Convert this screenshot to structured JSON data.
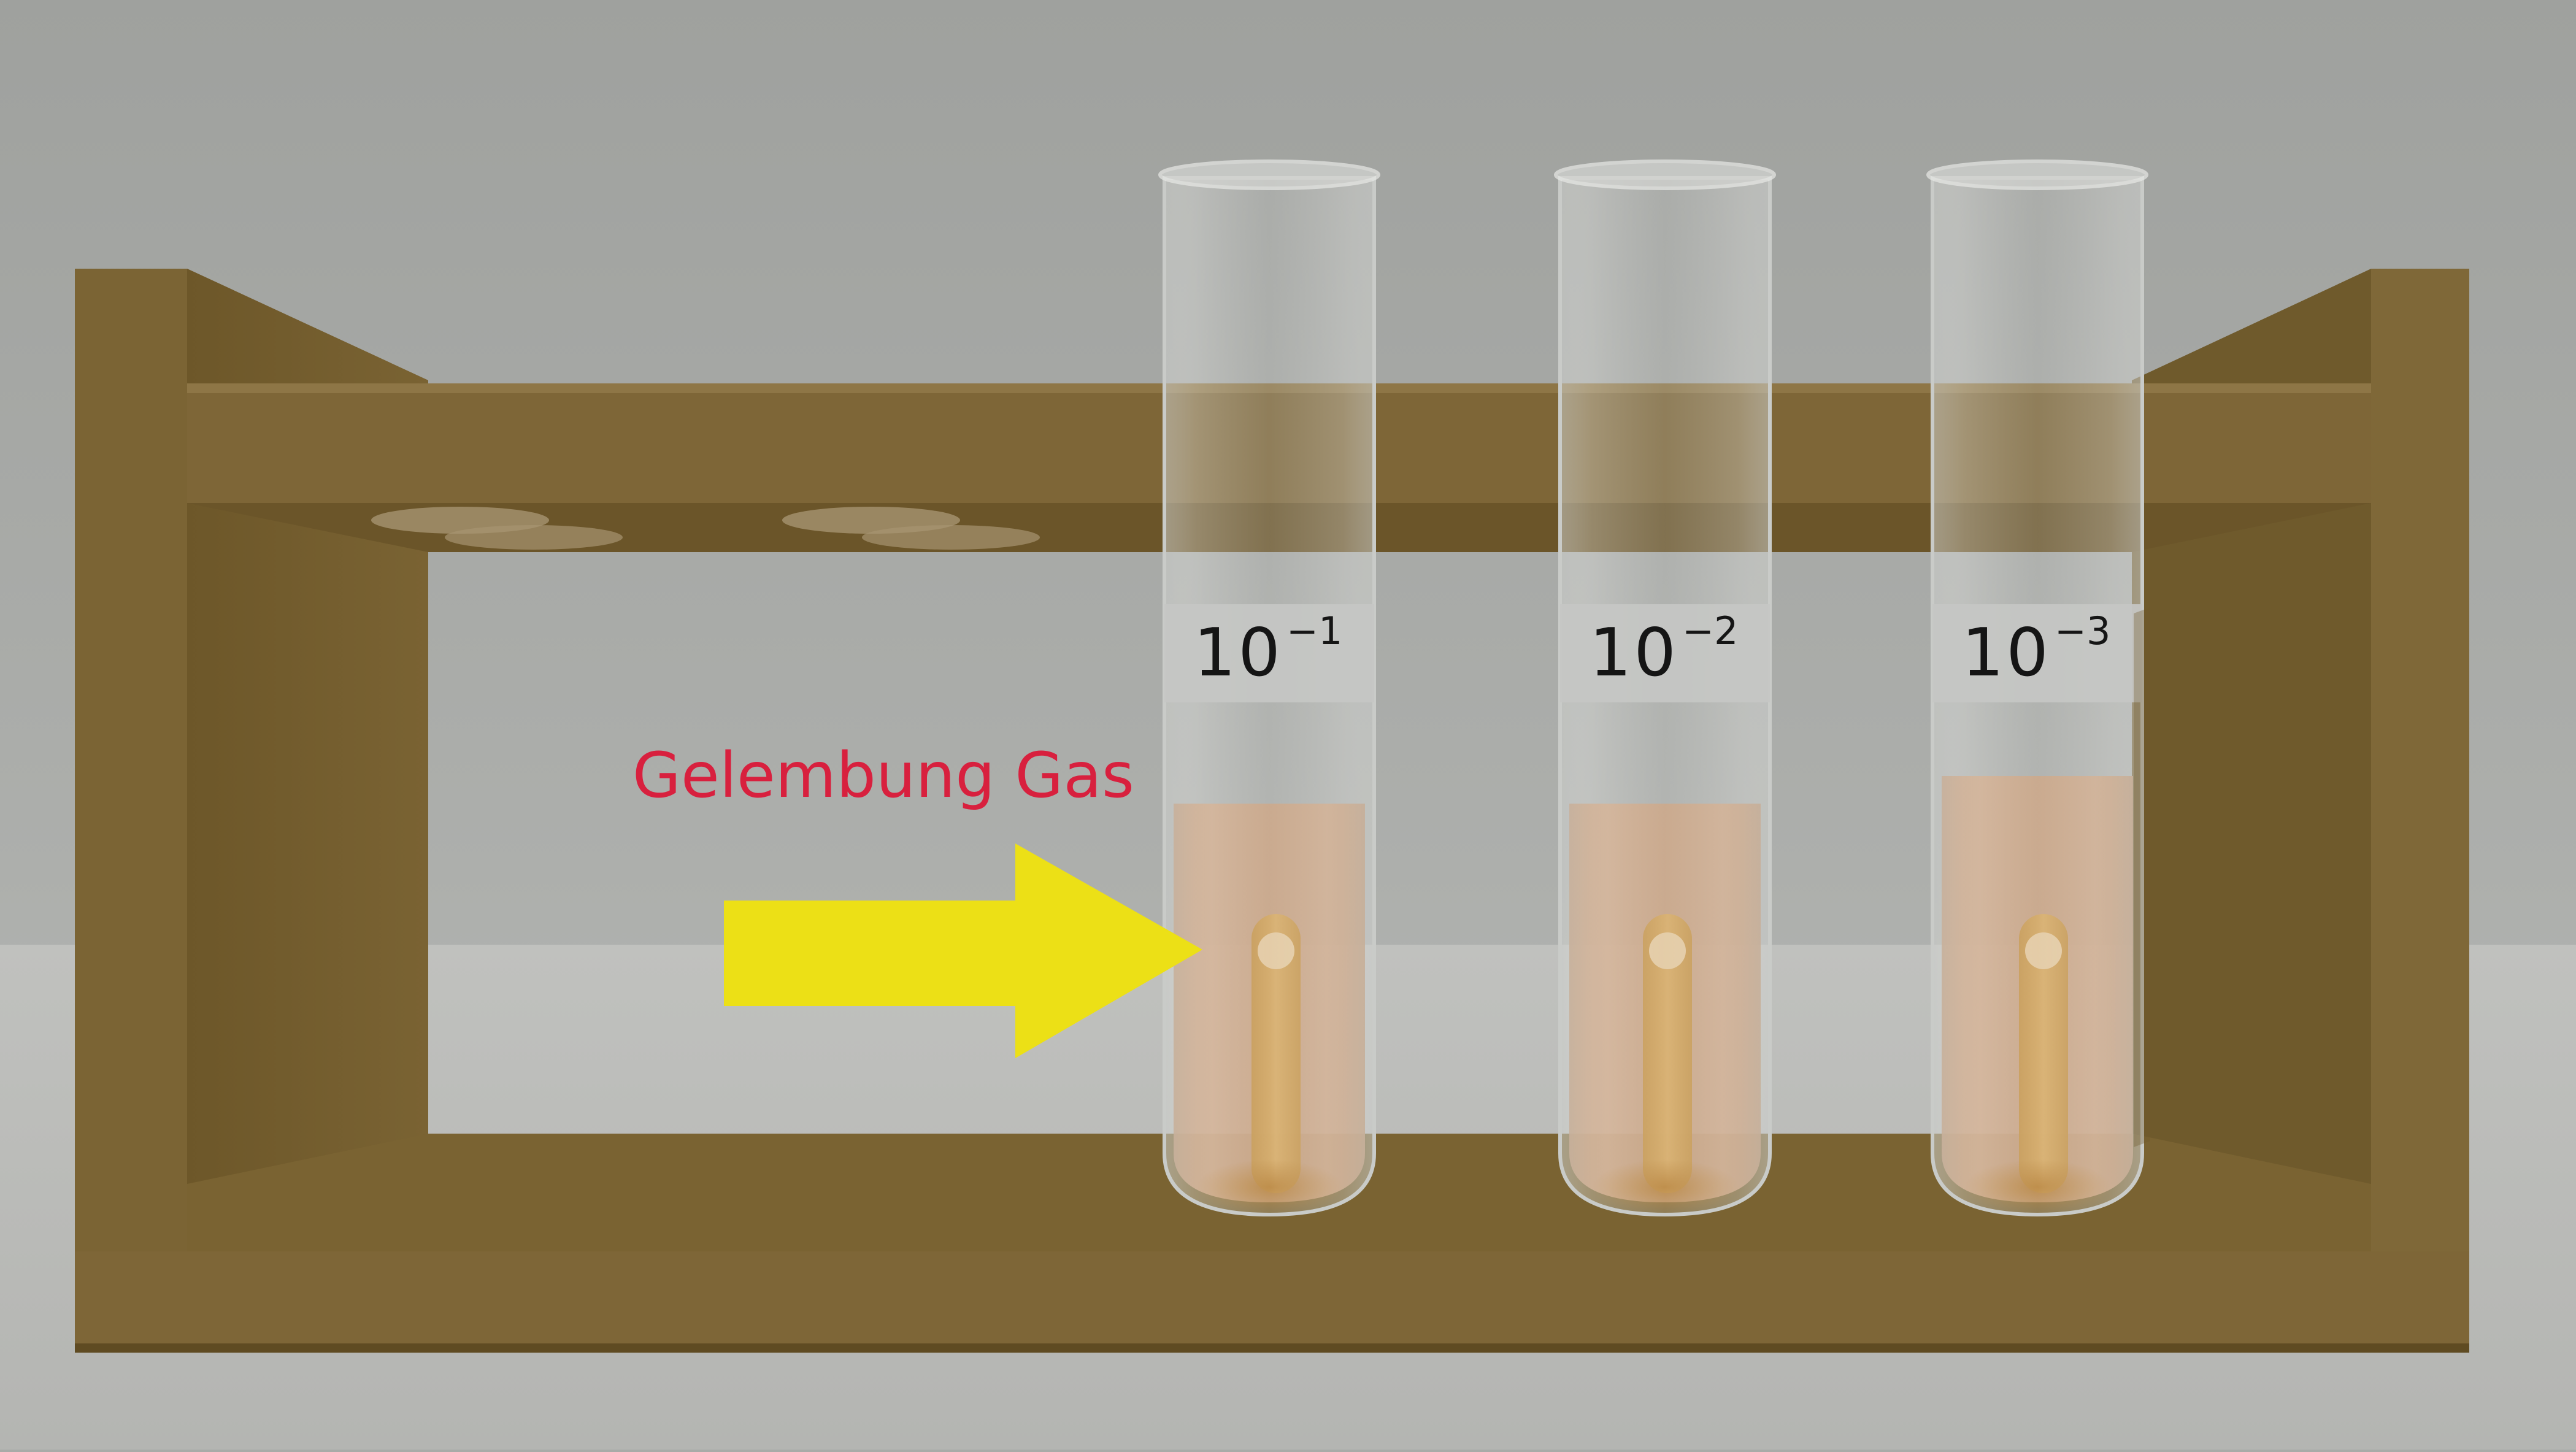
{
  "callout": {
    "text": "Gelembung Gas",
    "color": "#d8203e",
    "arrow_color": "#ece016"
  },
  "tubes": [
    {
      "base": "10",
      "exponent": "−1"
    },
    {
      "base": "10",
      "exponent": "−2"
    },
    {
      "base": "10",
      "exponent": "−3"
    }
  ],
  "colors": {
    "background": "#a9aba8",
    "rack_wood": "#7e6637",
    "rack_shadow": "#624e26",
    "liquid": "#c99b72",
    "durham_tube": "#d9a24b"
  }
}
